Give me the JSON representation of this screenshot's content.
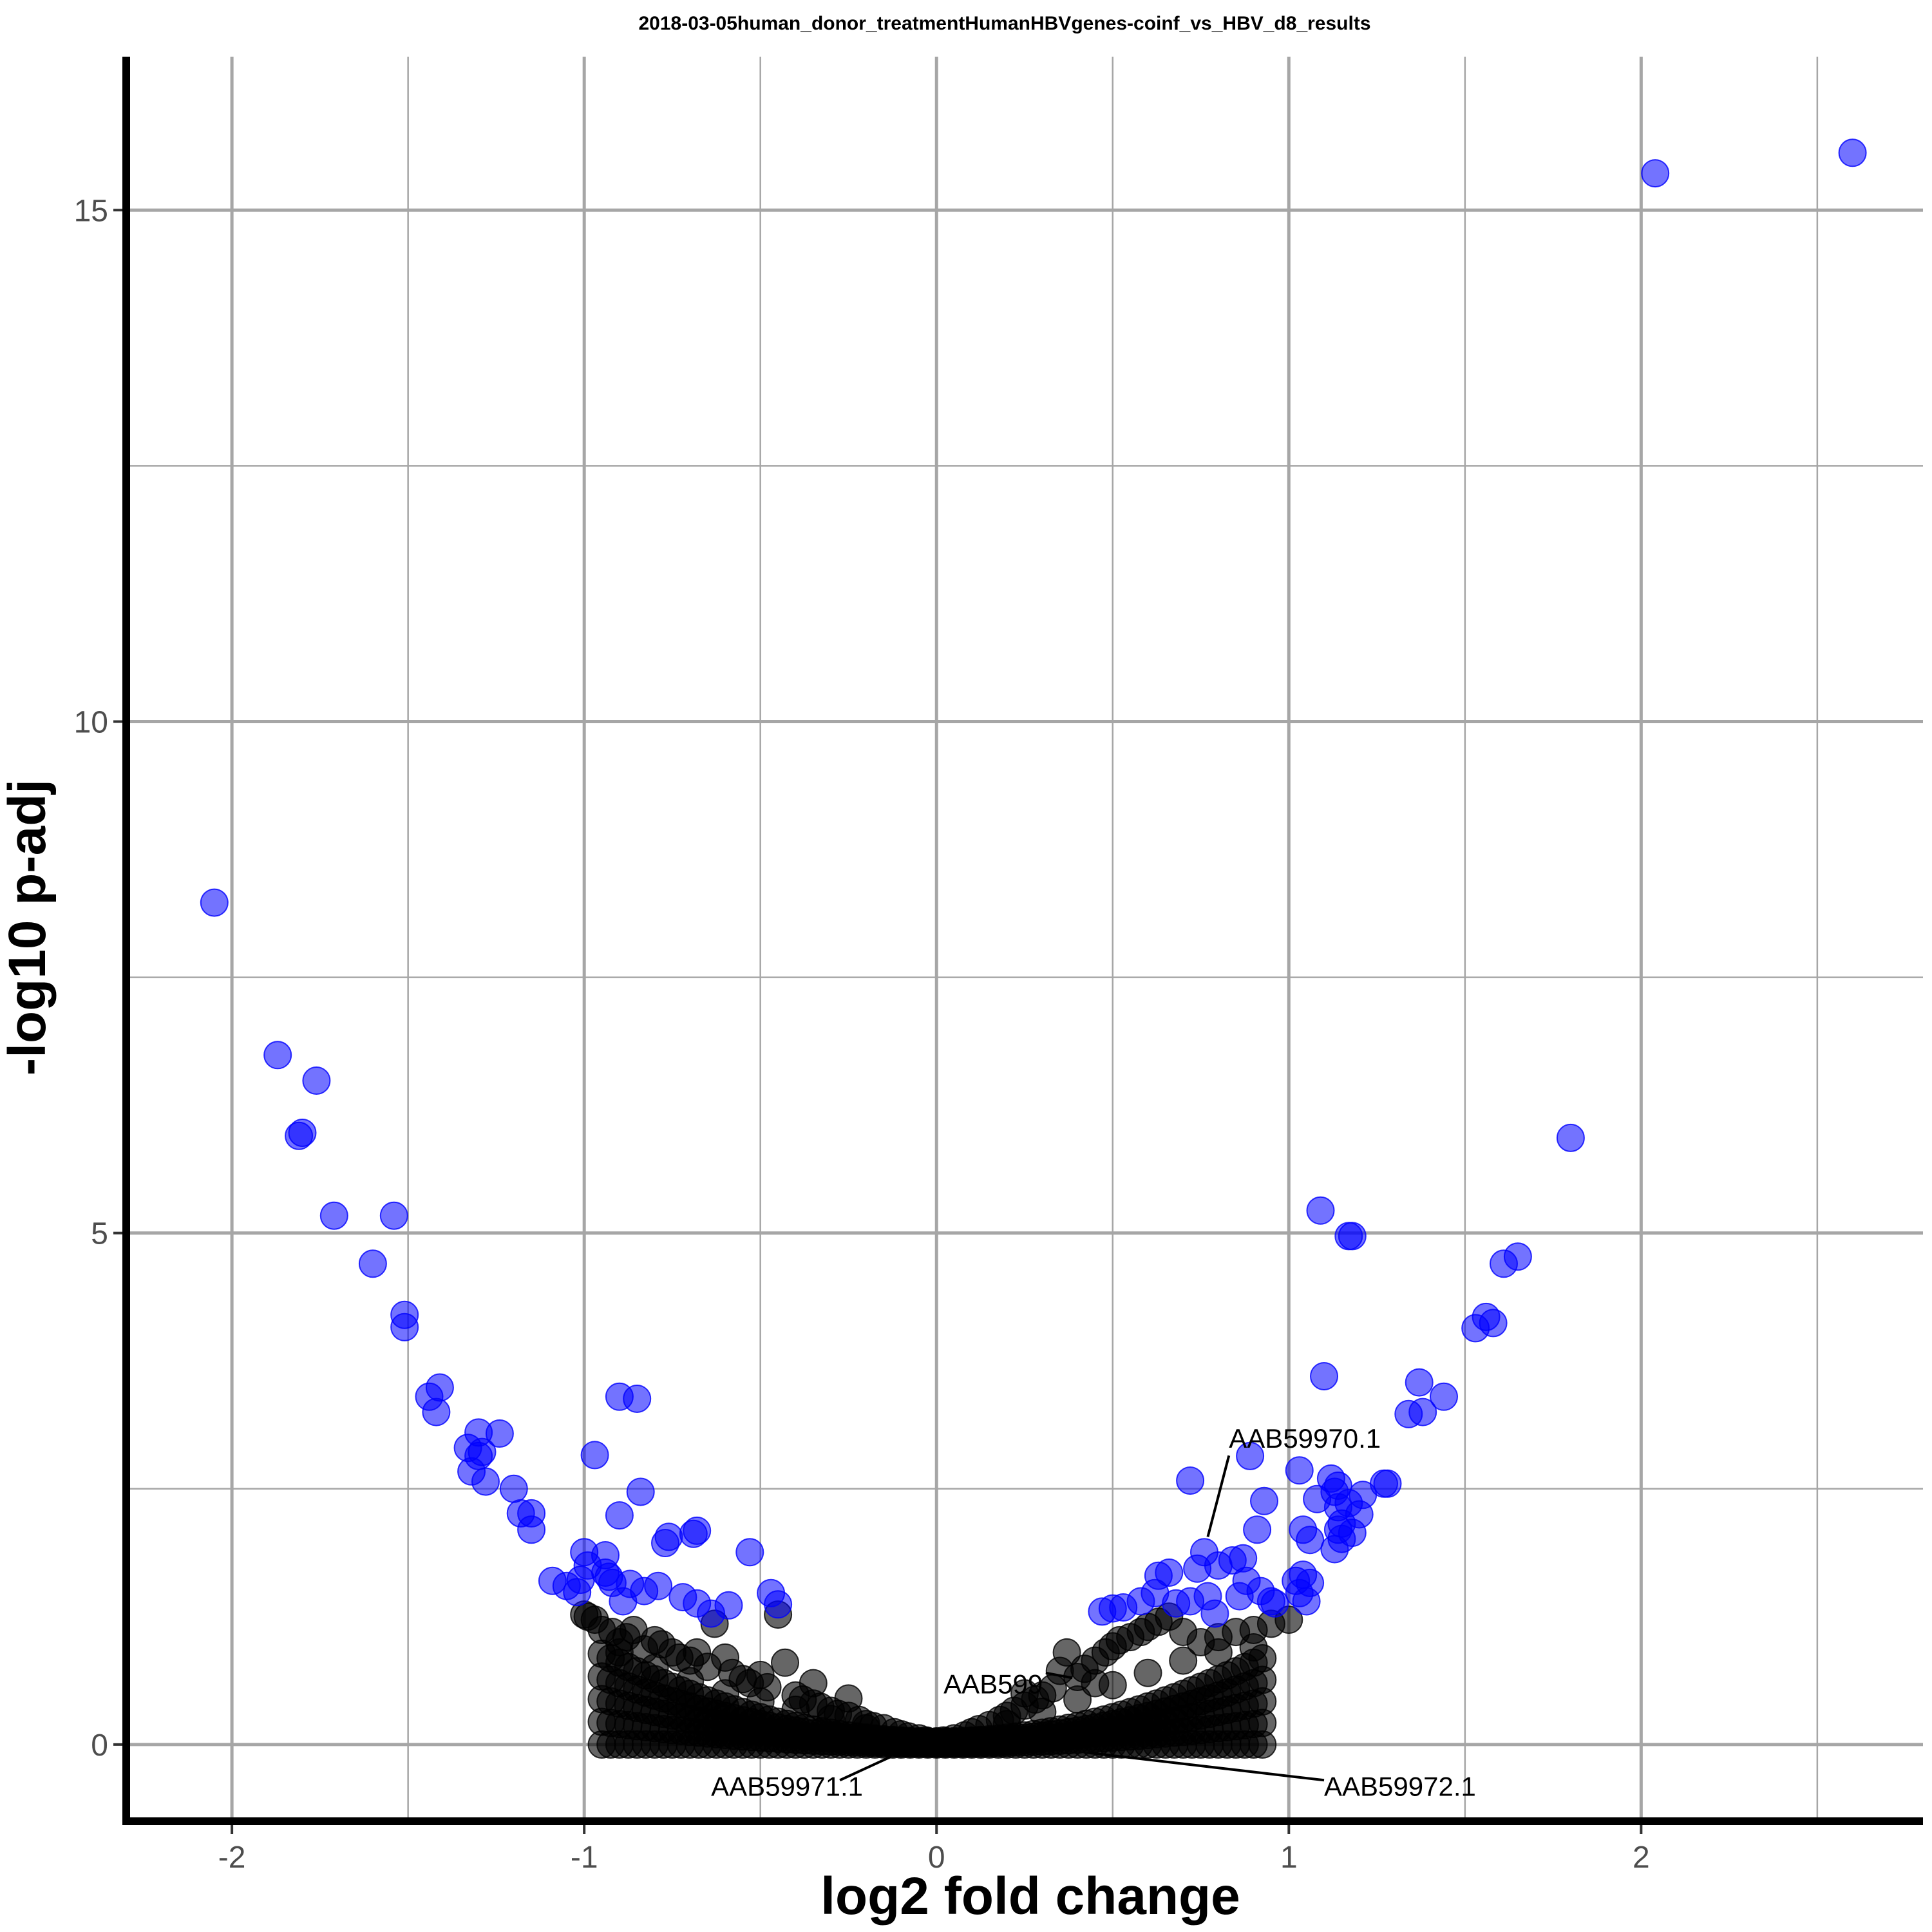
{
  "chart_data": {
    "type": "scatter",
    "title": "2018-03-05human_donor_treatmentHumanHBVgenes-coinf_vs_HBV_d8_results",
    "xlabel": "log2 fold change",
    "ylabel": "-log10 p-adj",
    "xlim": [
      -2.3,
      2.8
    ],
    "ylim": [
      -0.75,
      16.5
    ],
    "x_ticks": [
      -2,
      -1,
      0,
      1,
      2
    ],
    "x_tick_labels": [
      "-2",
      "-1",
      "0",
      "1",
      "2"
    ],
    "y_ticks": [
      0,
      5,
      10,
      15
    ],
    "y_tick_labels": [
      "0",
      "5",
      "10",
      "15"
    ],
    "grid": true,
    "legend": "none",
    "colors": {
      "significant": "#0000ff",
      "not_significant": "#000000",
      "grid": "#a6a6a6"
    },
    "series": [
      {
        "color": "#0000ff",
        "points": [
          [
            2.6,
            15.56
          ],
          [
            2.04,
            15.36
          ],
          [
            -2.05,
            8.23
          ],
          [
            -1.87,
            6.74
          ],
          [
            -1.76,
            6.49
          ],
          [
            -1.8,
            5.98
          ],
          [
            -1.81,
            5.95
          ],
          [
            1.8,
            5.93
          ],
          [
            -1.71,
            5.17
          ],
          [
            -1.54,
            5.17
          ],
          [
            1.09,
            5.22
          ],
          [
            1.17,
            4.97
          ],
          [
            1.18,
            4.97
          ],
          [
            -1.6,
            4.7
          ],
          [
            1.65,
            4.77
          ],
          [
            1.61,
            4.7
          ],
          [
            -1.51,
            4.2
          ],
          [
            -1.51,
            4.08
          ],
          [
            1.56,
            4.18
          ],
          [
            1.58,
            4.12
          ],
          [
            1.53,
            4.07
          ],
          [
            -1.41,
            3.49
          ],
          [
            -1.44,
            3.4
          ],
          [
            -1.42,
            3.25
          ],
          [
            1.1,
            3.6
          ],
          [
            1.37,
            3.54
          ],
          [
            1.44,
            3.4
          ],
          [
            1.38,
            3.25
          ],
          [
            1.34,
            3.23
          ],
          [
            -0.9,
            3.4
          ],
          [
            -0.85,
            3.38
          ],
          [
            -1.3,
            3.05
          ],
          [
            -1.24,
            3.04
          ],
          [
            -1.33,
            2.9
          ],
          [
            -1.29,
            2.86
          ],
          [
            -1.3,
            2.82
          ],
          [
            -1.32,
            2.67
          ],
          [
            -1.28,
            2.57
          ],
          [
            -1.2,
            2.5
          ],
          [
            -1.18,
            2.26
          ],
          [
            -1.15,
            2.26
          ],
          [
            -1.15,
            2.1
          ],
          [
            -0.97,
            2.83
          ],
          [
            -0.84,
            2.47
          ],
          [
            -0.9,
            2.24
          ],
          [
            -0.76,
            2.03
          ],
          [
            -0.77,
            1.97
          ],
          [
            -0.69,
            2.06
          ],
          [
            -0.68,
            2.09
          ],
          [
            -0.53,
            1.88
          ],
          [
            -1.0,
            1.88
          ],
          [
            -0.94,
            1.85
          ],
          [
            -0.99,
            1.75
          ],
          [
            -0.94,
            1.68
          ],
          [
            -1.01,
            1.61
          ],
          [
            -0.93,
            1.64
          ],
          [
            -0.87,
            1.57
          ],
          [
            -0.92,
            1.58
          ],
          [
            -1.09,
            1.6
          ],
          [
            -1.05,
            1.55
          ],
          [
            -1.02,
            1.49
          ],
          [
            -0.89,
            1.4
          ],
          [
            -0.83,
            1.5
          ],
          [
            -0.79,
            1.55
          ],
          [
            -0.72,
            1.44
          ],
          [
            -0.68,
            1.38
          ],
          [
            -0.64,
            1.28
          ],
          [
            -0.59,
            1.36
          ],
          [
            -0.47,
            1.48
          ],
          [
            -0.45,
            1.37
          ],
          [
            0.89,
            2.82
          ],
          [
            1.03,
            2.68
          ],
          [
            1.12,
            2.6
          ],
          [
            1.14,
            2.53
          ],
          [
            1.13,
            2.47
          ],
          [
            1.08,
            2.4
          ],
          [
            1.21,
            2.44
          ],
          [
            1.17,
            2.36
          ],
          [
            1.14,
            2.32
          ],
          [
            1.28,
            2.55
          ],
          [
            1.27,
            2.55
          ],
          [
            1.2,
            2.25
          ],
          [
            0.72,
            2.58
          ],
          [
            0.93,
            2.38
          ],
          [
            0.91,
            2.1
          ],
          [
            1.15,
            2.16
          ],
          [
            1.14,
            2.1
          ],
          [
            1.18,
            2.07
          ],
          [
            1.15,
            2.01
          ],
          [
            1.13,
            1.91
          ],
          [
            1.04,
            2.1
          ],
          [
            1.06,
            2.0
          ],
          [
            0.76,
            1.88
          ],
          [
            0.8,
            1.75
          ],
          [
            0.84,
            1.8
          ],
          [
            0.87,
            1.82
          ],
          [
            0.74,
            1.72
          ],
          [
            0.63,
            1.65
          ],
          [
            0.66,
            1.68
          ],
          [
            0.88,
            1.6
          ],
          [
            1.04,
            1.66
          ],
          [
            1.02,
            1.6
          ],
          [
            1.06,
            1.58
          ],
          [
            0.92,
            1.5
          ],
          [
            0.86,
            1.45
          ],
          [
            1.03,
            1.48
          ],
          [
            1.05,
            1.4
          ],
          [
            0.95,
            1.4
          ],
          [
            0.77,
            1.45
          ],
          [
            0.72,
            1.4
          ],
          [
            0.58,
            1.4
          ],
          [
            0.62,
            1.48
          ],
          [
            0.5,
            1.33
          ],
          [
            0.53,
            1.34
          ],
          [
            0.47,
            1.3
          ],
          [
            0.68,
            1.38
          ],
          [
            0.79,
            1.28
          ],
          [
            0.96,
            1.38
          ]
        ]
      },
      {
        "color": "#000000",
        "points": [
          [
            -1.0,
            1.27
          ],
          [
            -0.99,
            1.25
          ],
          [
            -0.97,
            1.22
          ],
          [
            -0.95,
            1.12
          ],
          [
            -0.92,
            1.1
          ],
          [
            -0.9,
            1.0
          ],
          [
            -0.88,
            1.05
          ],
          [
            -0.86,
            1.12
          ],
          [
            -0.83,
            0.93
          ],
          [
            -0.8,
            1.02
          ],
          [
            -0.78,
            0.98
          ],
          [
            -0.75,
            0.9
          ],
          [
            -0.73,
            0.85
          ],
          [
            -0.7,
            0.82
          ],
          [
            -0.68,
            0.9
          ],
          [
            -0.65,
            0.76
          ],
          [
            -0.63,
            1.18
          ],
          [
            -0.6,
            0.85
          ],
          [
            -0.58,
            0.7
          ],
          [
            -0.55,
            0.64
          ],
          [
            -0.53,
            0.6
          ],
          [
            -0.5,
            0.68
          ],
          [
            -0.48,
            0.56
          ],
          [
            -0.45,
            1.27
          ],
          [
            -0.43,
            0.8
          ],
          [
            -0.4,
            0.48
          ],
          [
            -0.38,
            0.44
          ],
          [
            -0.35,
            0.4
          ],
          [
            -0.33,
            0.37
          ],
          [
            -0.3,
            0.33
          ],
          [
            -0.28,
            0.3
          ],
          [
            -0.25,
            0.28
          ],
          [
            -0.22,
            0.24
          ],
          [
            -0.2,
            0.2
          ],
          [
            -0.18,
            0.18
          ],
          [
            -0.15,
            0.16
          ],
          [
            -0.12,
            0.12
          ],
          [
            -0.1,
            0.1
          ],
          [
            -0.08,
            0.08
          ],
          [
            -0.05,
            0.06
          ],
          [
            -0.03,
            0.04
          ],
          [
            0.0,
            0.03
          ],
          [
            0.02,
            0.04
          ],
          [
            0.05,
            0.06
          ],
          [
            0.08,
            0.09
          ],
          [
            0.1,
            0.12
          ],
          [
            0.12,
            0.15
          ],
          [
            0.15,
            0.19
          ],
          [
            0.18,
            0.24
          ],
          [
            0.2,
            0.28
          ],
          [
            0.22,
            0.33
          ],
          [
            0.25,
            0.38
          ],
          [
            0.28,
            0.44
          ],
          [
            0.3,
            0.48
          ],
          [
            0.33,
            0.55
          ],
          [
            0.35,
            0.72
          ],
          [
            0.37,
            0.9
          ],
          [
            0.4,
            0.66
          ],
          [
            0.42,
            0.74
          ],
          [
            0.45,
            0.82
          ],
          [
            0.48,
            0.9
          ],
          [
            0.5,
            0.96
          ],
          [
            0.52,
            1.02
          ],
          [
            0.55,
            1.05
          ],
          [
            0.58,
            1.1
          ],
          [
            0.6,
            1.15
          ],
          [
            0.63,
            1.2
          ],
          [
            0.66,
            1.25
          ],
          [
            0.7,
            1.1
          ],
          [
            0.75,
            1.0
          ],
          [
            0.8,
            1.05
          ],
          [
            0.85,
            1.1
          ],
          [
            0.9,
            1.12
          ],
          [
            0.95,
            1.18
          ],
          [
            1.0,
            1.22
          ],
          [
            -0.6,
            0.5
          ],
          [
            -0.5,
            0.42
          ],
          [
            -0.4,
            0.34
          ],
          [
            -0.3,
            0.25
          ],
          [
            -0.2,
            0.16
          ],
          [
            0.2,
            0.2
          ],
          [
            0.3,
            0.32
          ],
          [
            0.4,
            0.44
          ],
          [
            0.5,
            0.58
          ],
          [
            0.6,
            0.7
          ],
          [
            -0.7,
            0.62
          ],
          [
            -0.8,
            0.75
          ],
          [
            -0.9,
            0.9
          ],
          [
            0.7,
            0.82
          ],
          [
            0.8,
            0.9
          ],
          [
            0.9,
            0.95
          ],
          [
            -0.35,
            0.6
          ],
          [
            -0.25,
            0.45
          ],
          [
            0.25,
            0.5
          ],
          [
            0.45,
            0.6
          ]
        ]
      }
    ],
    "annotations": [
      {
        "text": "AAB59970.1",
        "x": 0.77,
        "y": 2.03,
        "label_x": 0.83,
        "label_y": 2.9
      },
      {
        "text": "AAB599",
        "x": 0.31,
        "y": 0.7,
        "label_x": 0.02,
        "label_y": 0.5
      },
      {
        "text": "AAB59971.1",
        "x": -0.13,
        "y": -0.12,
        "label_x": -0.64,
        "label_y": -0.5
      },
      {
        "text": "AAB59972.1",
        "x": 0.43,
        "y": -0.08,
        "label_x": 1.1,
        "label_y": -0.5
      }
    ]
  }
}
